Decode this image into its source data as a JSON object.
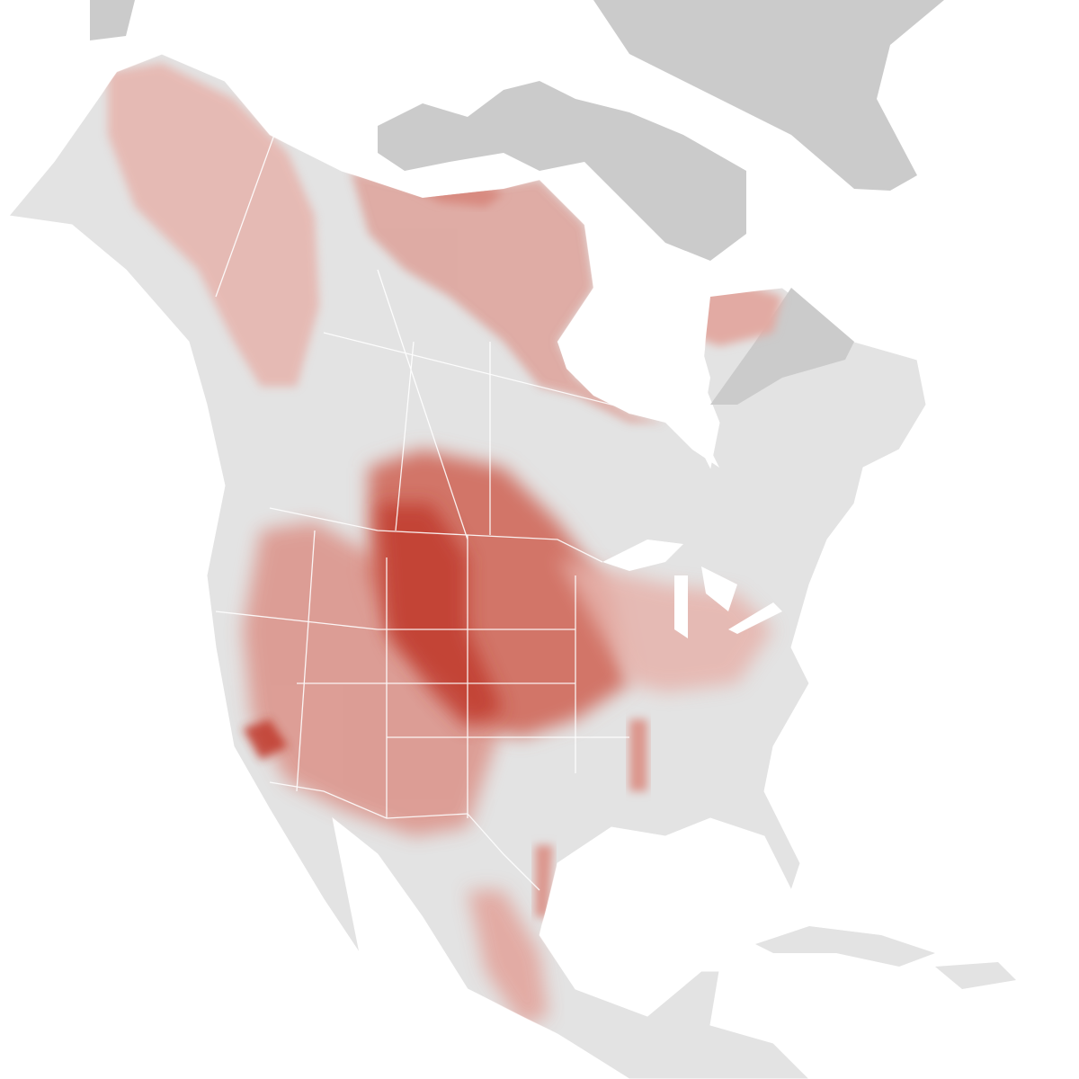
{
  "map": {
    "type": "abundance-map",
    "region": "North America",
    "colors": {
      "ocean": "#ffffff",
      "land": "#e3e3e3",
      "no_data_land": "#cbcbcb",
      "borders": "#ffffff",
      "abundance_low": "#e6b3ac",
      "abundance_mid": "#d9786a",
      "abundance_high": "#c0392b"
    }
  }
}
